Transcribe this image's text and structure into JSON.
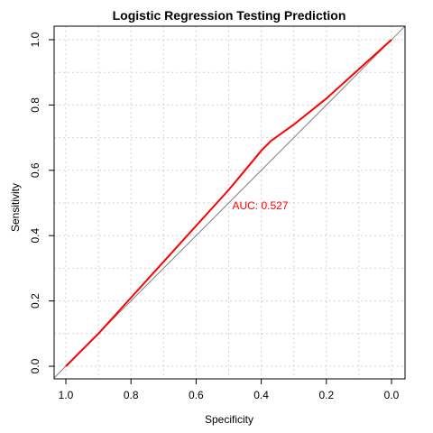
{
  "chart_data": {
    "type": "line",
    "title": "Logistic Regression Testing Prediction",
    "xlabel": "Specificity",
    "ylabel": "Sensitivity",
    "xlim": [
      1.0,
      0.0
    ],
    "ylim": [
      0.0,
      1.0
    ],
    "x_reversed": true,
    "grid": true,
    "x_ticks": [
      "1.0",
      "0.8",
      "0.6",
      "0.4",
      "0.2",
      "0.0"
    ],
    "y_ticks": [
      "0.0",
      "0.2",
      "0.4",
      "0.6",
      "0.8",
      "1.0"
    ],
    "reference_line": {
      "x": [
        1.0,
        0.0
      ],
      "y": [
        0.0,
        1.0
      ],
      "color": "#808080"
    },
    "series": [
      {
        "color": "#ff0000",
        "x": [
          1.0,
          0.9,
          0.8,
          0.7,
          0.6,
          0.5,
          0.45,
          0.4,
          0.37,
          0.3,
          0.2,
          0.1,
          0.0
        ],
        "y": [
          0.0,
          0.1,
          0.21,
          0.32,
          0.43,
          0.54,
          0.6,
          0.66,
          0.69,
          0.74,
          0.82,
          0.91,
          1.0
        ]
      }
    ],
    "annotation": {
      "text": "AUC: 0.527",
      "x": 0.5,
      "y": 0.48,
      "color": "#ff0000"
    }
  }
}
